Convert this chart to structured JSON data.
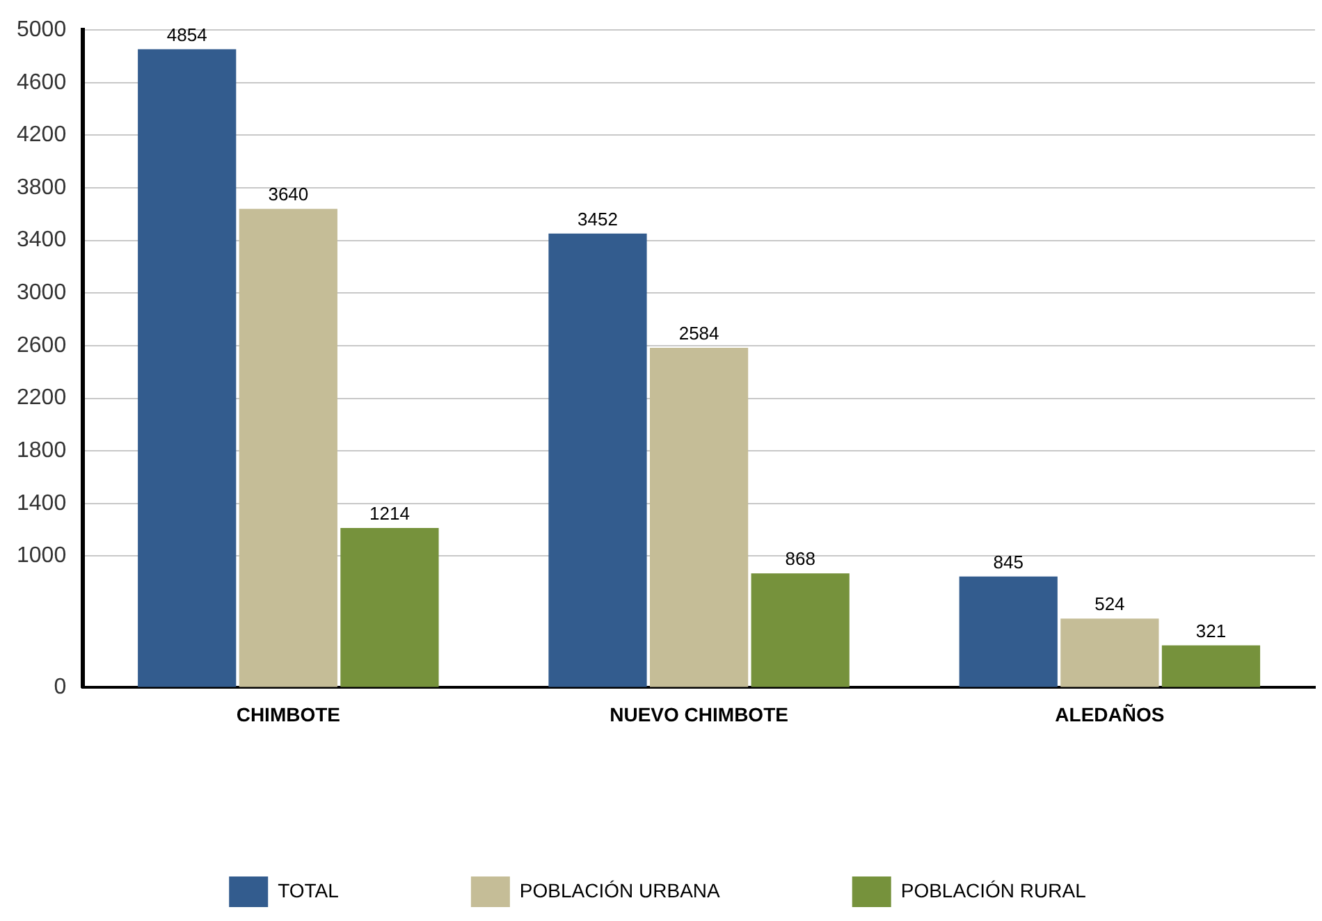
{
  "chart_data": {
    "type": "bar",
    "categories": [
      "CHIMBOTE",
      "NUEVO CHIMBOTE",
      "ALEDAÑOS"
    ],
    "series": [
      {
        "name": "TOTAL",
        "color": "#335c8e",
        "values": [
          4854,
          3452,
          845
        ]
      },
      {
        "name": "POBLACIÓN URBANA",
        "color": "#c5bd97",
        "values": [
          3640,
          2584,
          524
        ]
      },
      {
        "name": "POBLACIÓN RURAL",
        "color": "#76923c",
        "values": [
          1214,
          868,
          321
        ]
      }
    ],
    "ylim": [
      0,
      5000
    ],
    "yticks": [
      0,
      1000,
      1400,
      1800,
      2200,
      2600,
      3000,
      3400,
      3800,
      4200,
      4600,
      5000
    ],
    "grid": "y",
    "legend": "bottom",
    "data_labels": true
  }
}
